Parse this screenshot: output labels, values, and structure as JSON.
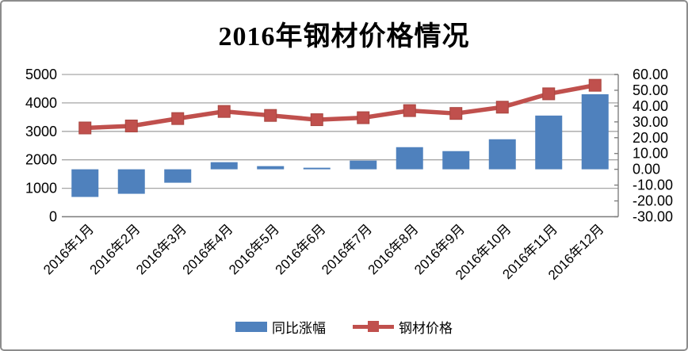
{
  "chart_data": {
    "type": "bar+line",
    "title": "2016年钢材价格情况",
    "categories": [
      "2016年1月",
      "2016年2月",
      "2016年3月",
      "2016年4月",
      "2016年5月",
      "2016年6月",
      "2016年7月",
      "2016年8月",
      "2016年9月",
      "2016年10月",
      "2016年11月",
      "2016年12月"
    ],
    "series": [
      {
        "name": "同比涨幅",
        "type": "bar",
        "axis": "right",
        "color": "#4F81BD",
        "values": [
          -17.5,
          -15.5,
          -8.5,
          4.5,
          2,
          1,
          5.5,
          14,
          11.5,
          19,
          34,
          47.5
        ]
      },
      {
        "name": "钢材价格",
        "type": "line",
        "axis": "left",
        "color": "#C0504D",
        "marker": "square",
        "values": [
          3120,
          3190,
          3450,
          3700,
          3560,
          3410,
          3480,
          3730,
          3630,
          3850,
          4320,
          4620
        ]
      }
    ],
    "left_axis": {
      "min": 0,
      "max": 5000,
      "step": 1000,
      "tick_labels": [
        "5000",
        "4000",
        "3000",
        "2000",
        "1000",
        "0"
      ]
    },
    "right_axis": {
      "min": -30,
      "max": 60,
      "step": 10,
      "tick_labels": [
        "60.00",
        "50.00",
        "40.00",
        "30.00",
        "20.00",
        "10.00",
        "0.00",
        "-10.00",
        "-20.00",
        "-30.00"
      ]
    },
    "grid": true,
    "legend_position": "bottom",
    "colors": {
      "grid": "#a6a6a6",
      "axis": "#808080",
      "frame_border": "#8c8c8c",
      "text": "#000000"
    }
  }
}
